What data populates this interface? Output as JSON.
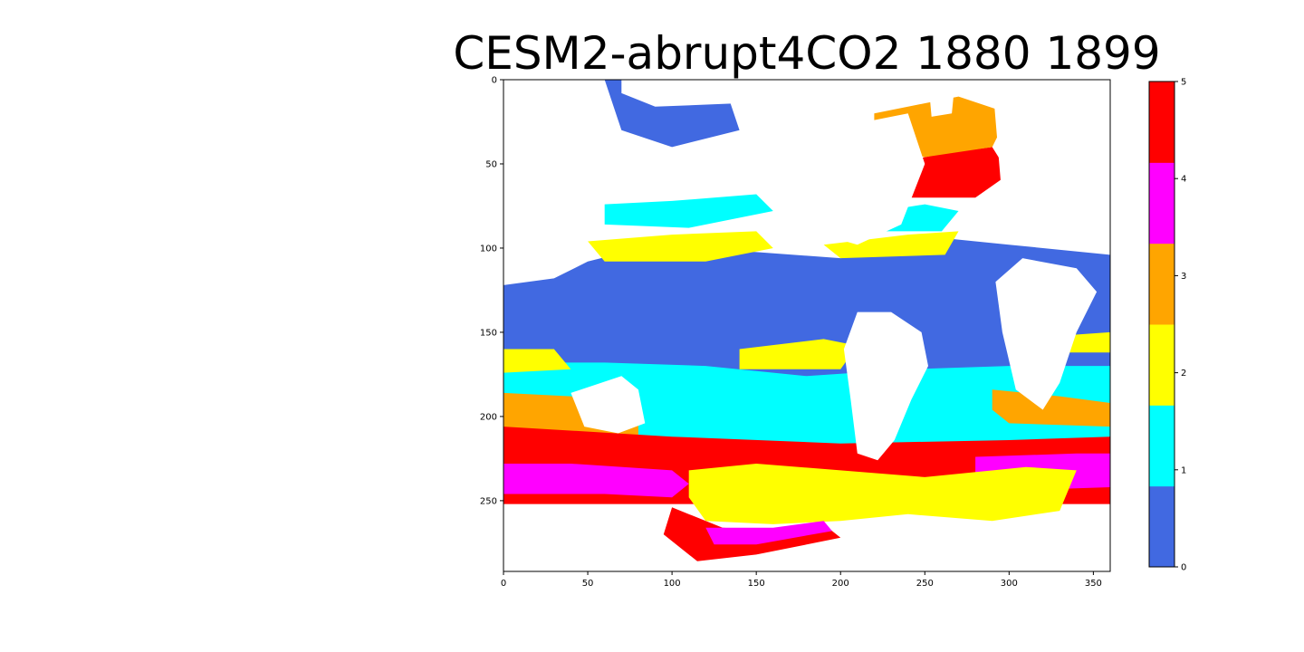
{
  "chart_data": {
    "type": "heatmap",
    "title": "CESM2-abrupt4CO2 1880 1899",
    "xlabel": "",
    "ylabel": "",
    "x_range": [
      0,
      360
    ],
    "y_range": [
      0,
      292
    ],
    "y_inverted": true,
    "x_ticks": [
      0,
      50,
      100,
      150,
      200,
      250,
      300,
      350
    ],
    "y_ticks": [
      0,
      50,
      100,
      150,
      200,
      250
    ],
    "grid": false,
    "colorbar": {
      "range": [
        0,
        5
      ],
      "ticks": [
        0,
        1,
        2,
        3,
        4,
        5
      ],
      "colors": [
        "#4169e1",
        "#00ffff",
        "#ffff00",
        "#ffa500",
        "#ff00ff",
        "#ff0000"
      ]
    },
    "land_color": "#ffffff"
  }
}
